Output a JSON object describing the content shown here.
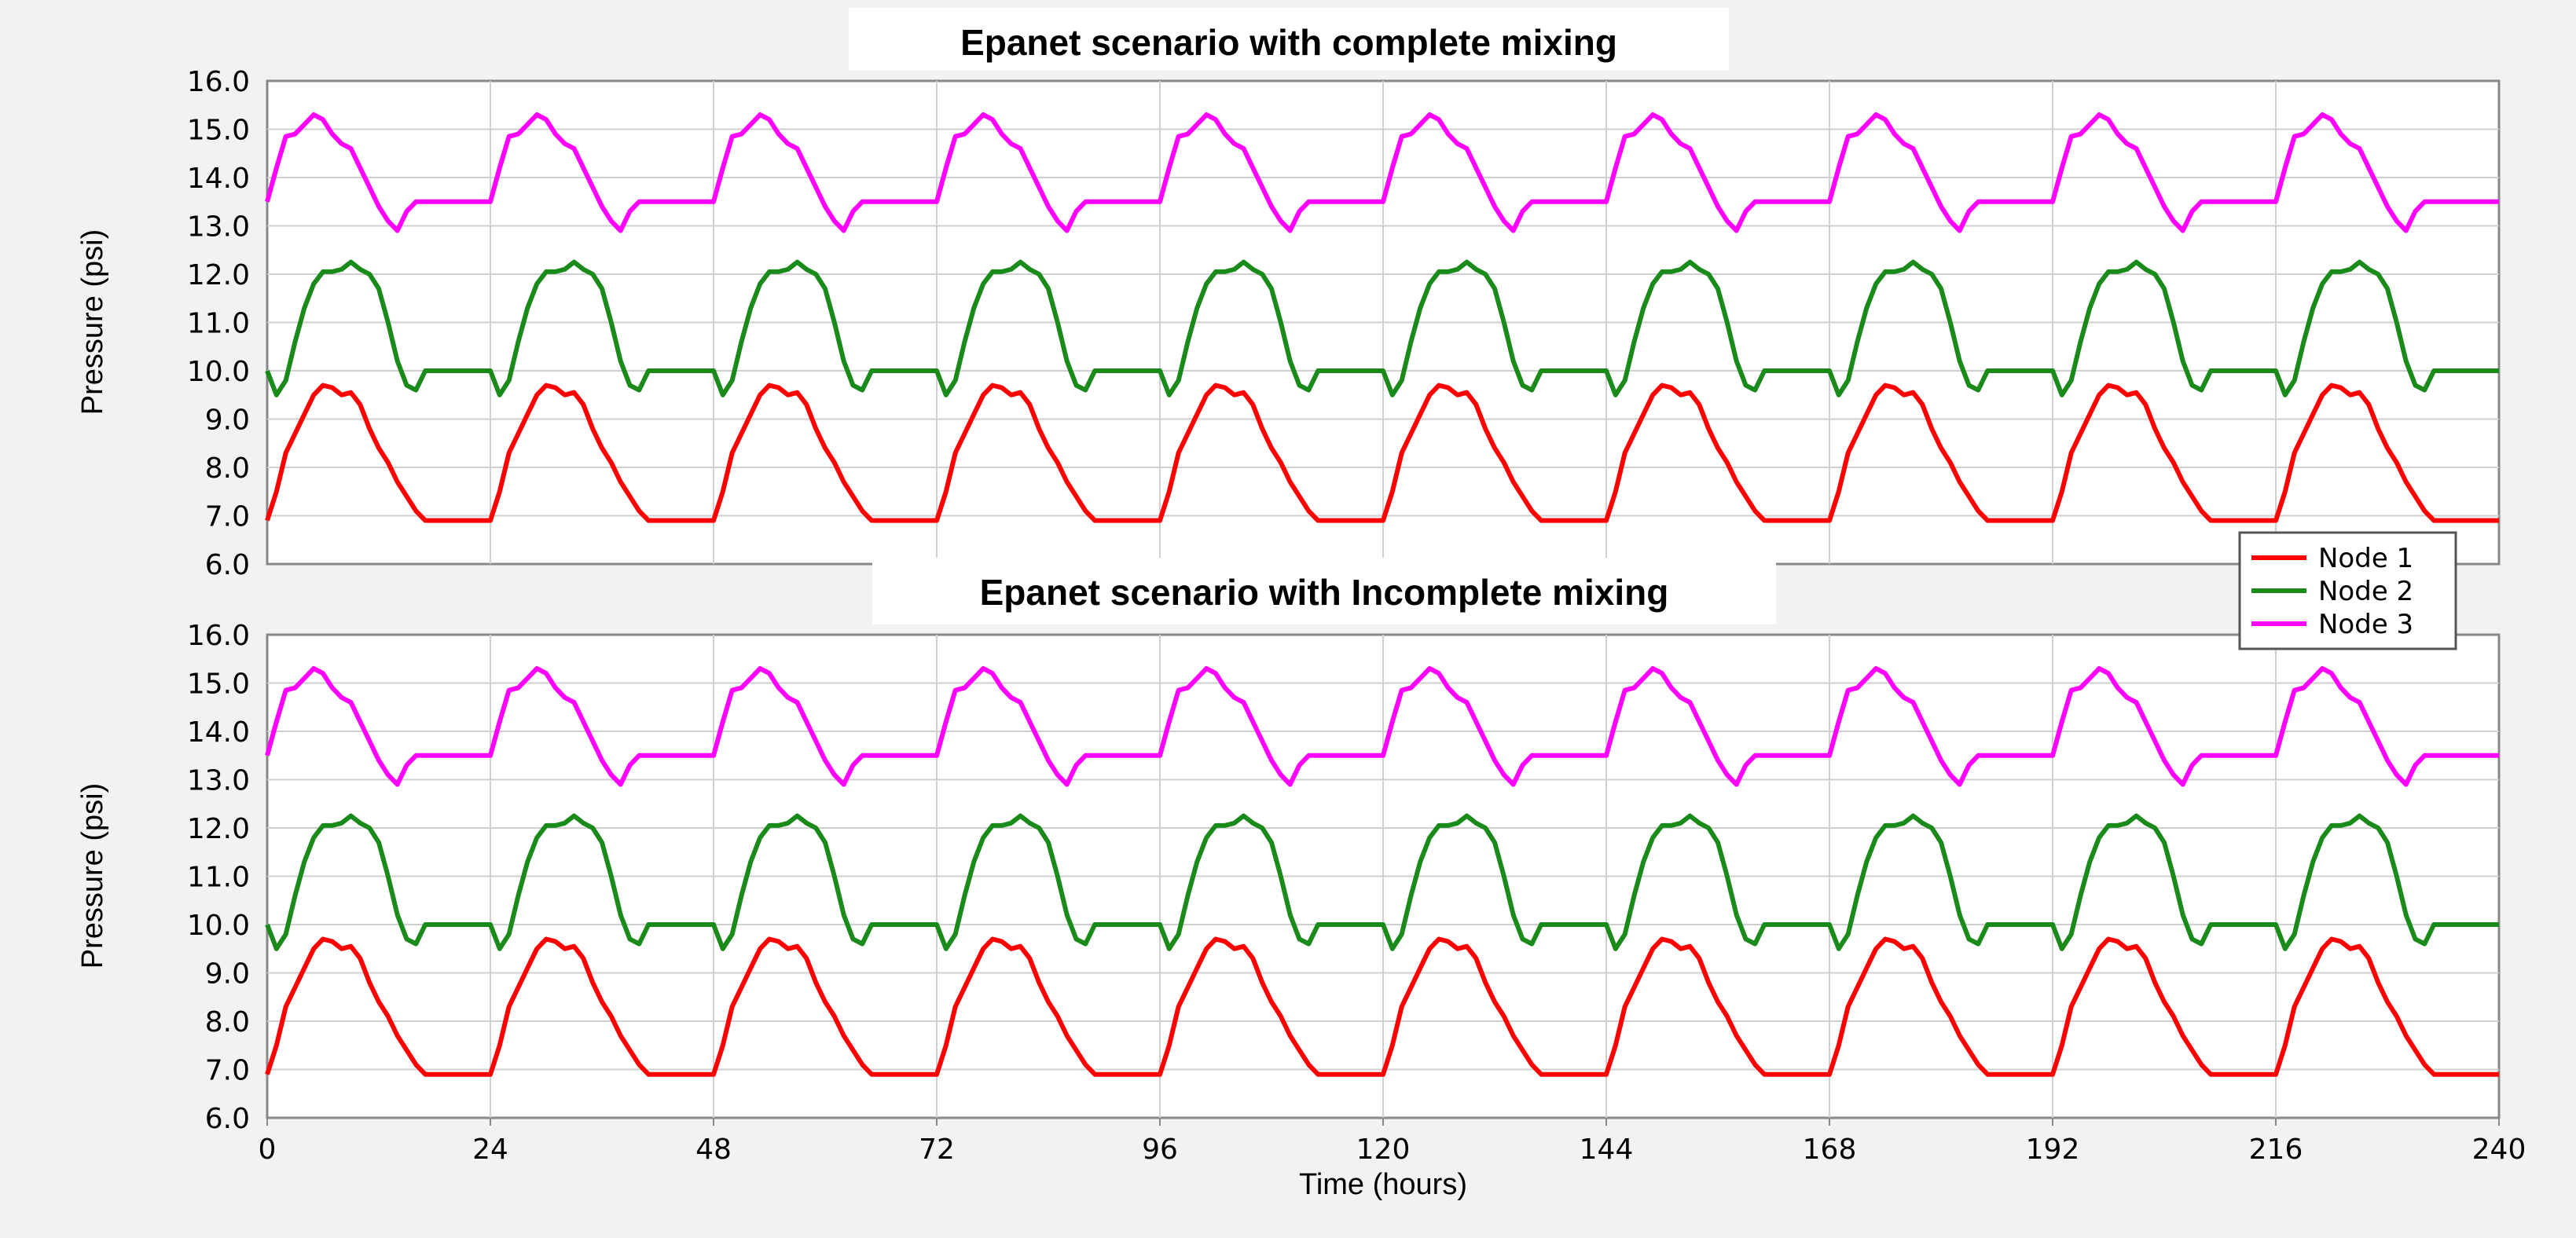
{
  "chart_data": {
    "type": "line",
    "xlabel": "Time (hours)",
    "xlim": [
      0,
      240
    ],
    "xticks": [
      "0",
      "24",
      "48",
      "72",
      "96",
      "120",
      "144",
      "168",
      "192",
      "216",
      "240"
    ],
    "ylabel": "Pressure (psi)",
    "ylim": [
      6.0,
      16.0
    ],
    "yticks": [
      "6.0",
      "7.0",
      "8.0",
      "9.0",
      "10.0",
      "11.0",
      "12.0",
      "13.0",
      "14.0",
      "15.0",
      "16.0"
    ],
    "grid": true,
    "legend": {
      "position": "right-middle",
      "entries": [
        "Node 1",
        "Node 2",
        "Node 3"
      ]
    },
    "daily_pattern_hours": [
      0,
      1,
      2,
      3,
      4,
      5,
      6,
      7,
      8,
      9,
      10,
      11,
      12,
      13,
      14,
      15,
      16,
      17,
      18,
      19,
      20,
      21,
      22,
      23
    ],
    "series": [
      {
        "name": "Node 1",
        "color": "#ff0000",
        "daily_values": [
          6.9,
          7.5,
          8.3,
          8.7,
          9.1,
          9.5,
          9.7,
          9.65,
          9.5,
          9.55,
          9.3,
          8.8,
          8.4,
          8.1,
          7.7,
          7.4,
          7.1,
          6.9,
          6.9,
          6.9,
          6.9,
          6.9,
          6.9,
          6.9
        ]
      },
      {
        "name": "Node 2",
        "color": "#1a8a1a",
        "daily_values": [
          10.0,
          9.5,
          9.8,
          10.6,
          11.3,
          11.8,
          12.05,
          12.05,
          12.1,
          12.25,
          12.1,
          12.0,
          11.7,
          11.0,
          10.2,
          9.7,
          9.6,
          10.0,
          10.0,
          10.0,
          10.0,
          10.0,
          10.0,
          10.0
        ]
      },
      {
        "name": "Node 3",
        "color": "#ff00ff",
        "daily_values": [
          13.5,
          14.2,
          14.85,
          14.9,
          15.1,
          15.3,
          15.2,
          14.9,
          14.7,
          14.6,
          14.2,
          13.8,
          13.4,
          13.1,
          12.9,
          13.3,
          13.5,
          13.5,
          13.5,
          13.5,
          13.5,
          13.5,
          13.5,
          13.5
        ]
      }
    ],
    "panels": [
      {
        "title": "Epanet scenario with complete mixing"
      },
      {
        "title": "Epanet scenario with Incomplete mixing"
      }
    ]
  }
}
